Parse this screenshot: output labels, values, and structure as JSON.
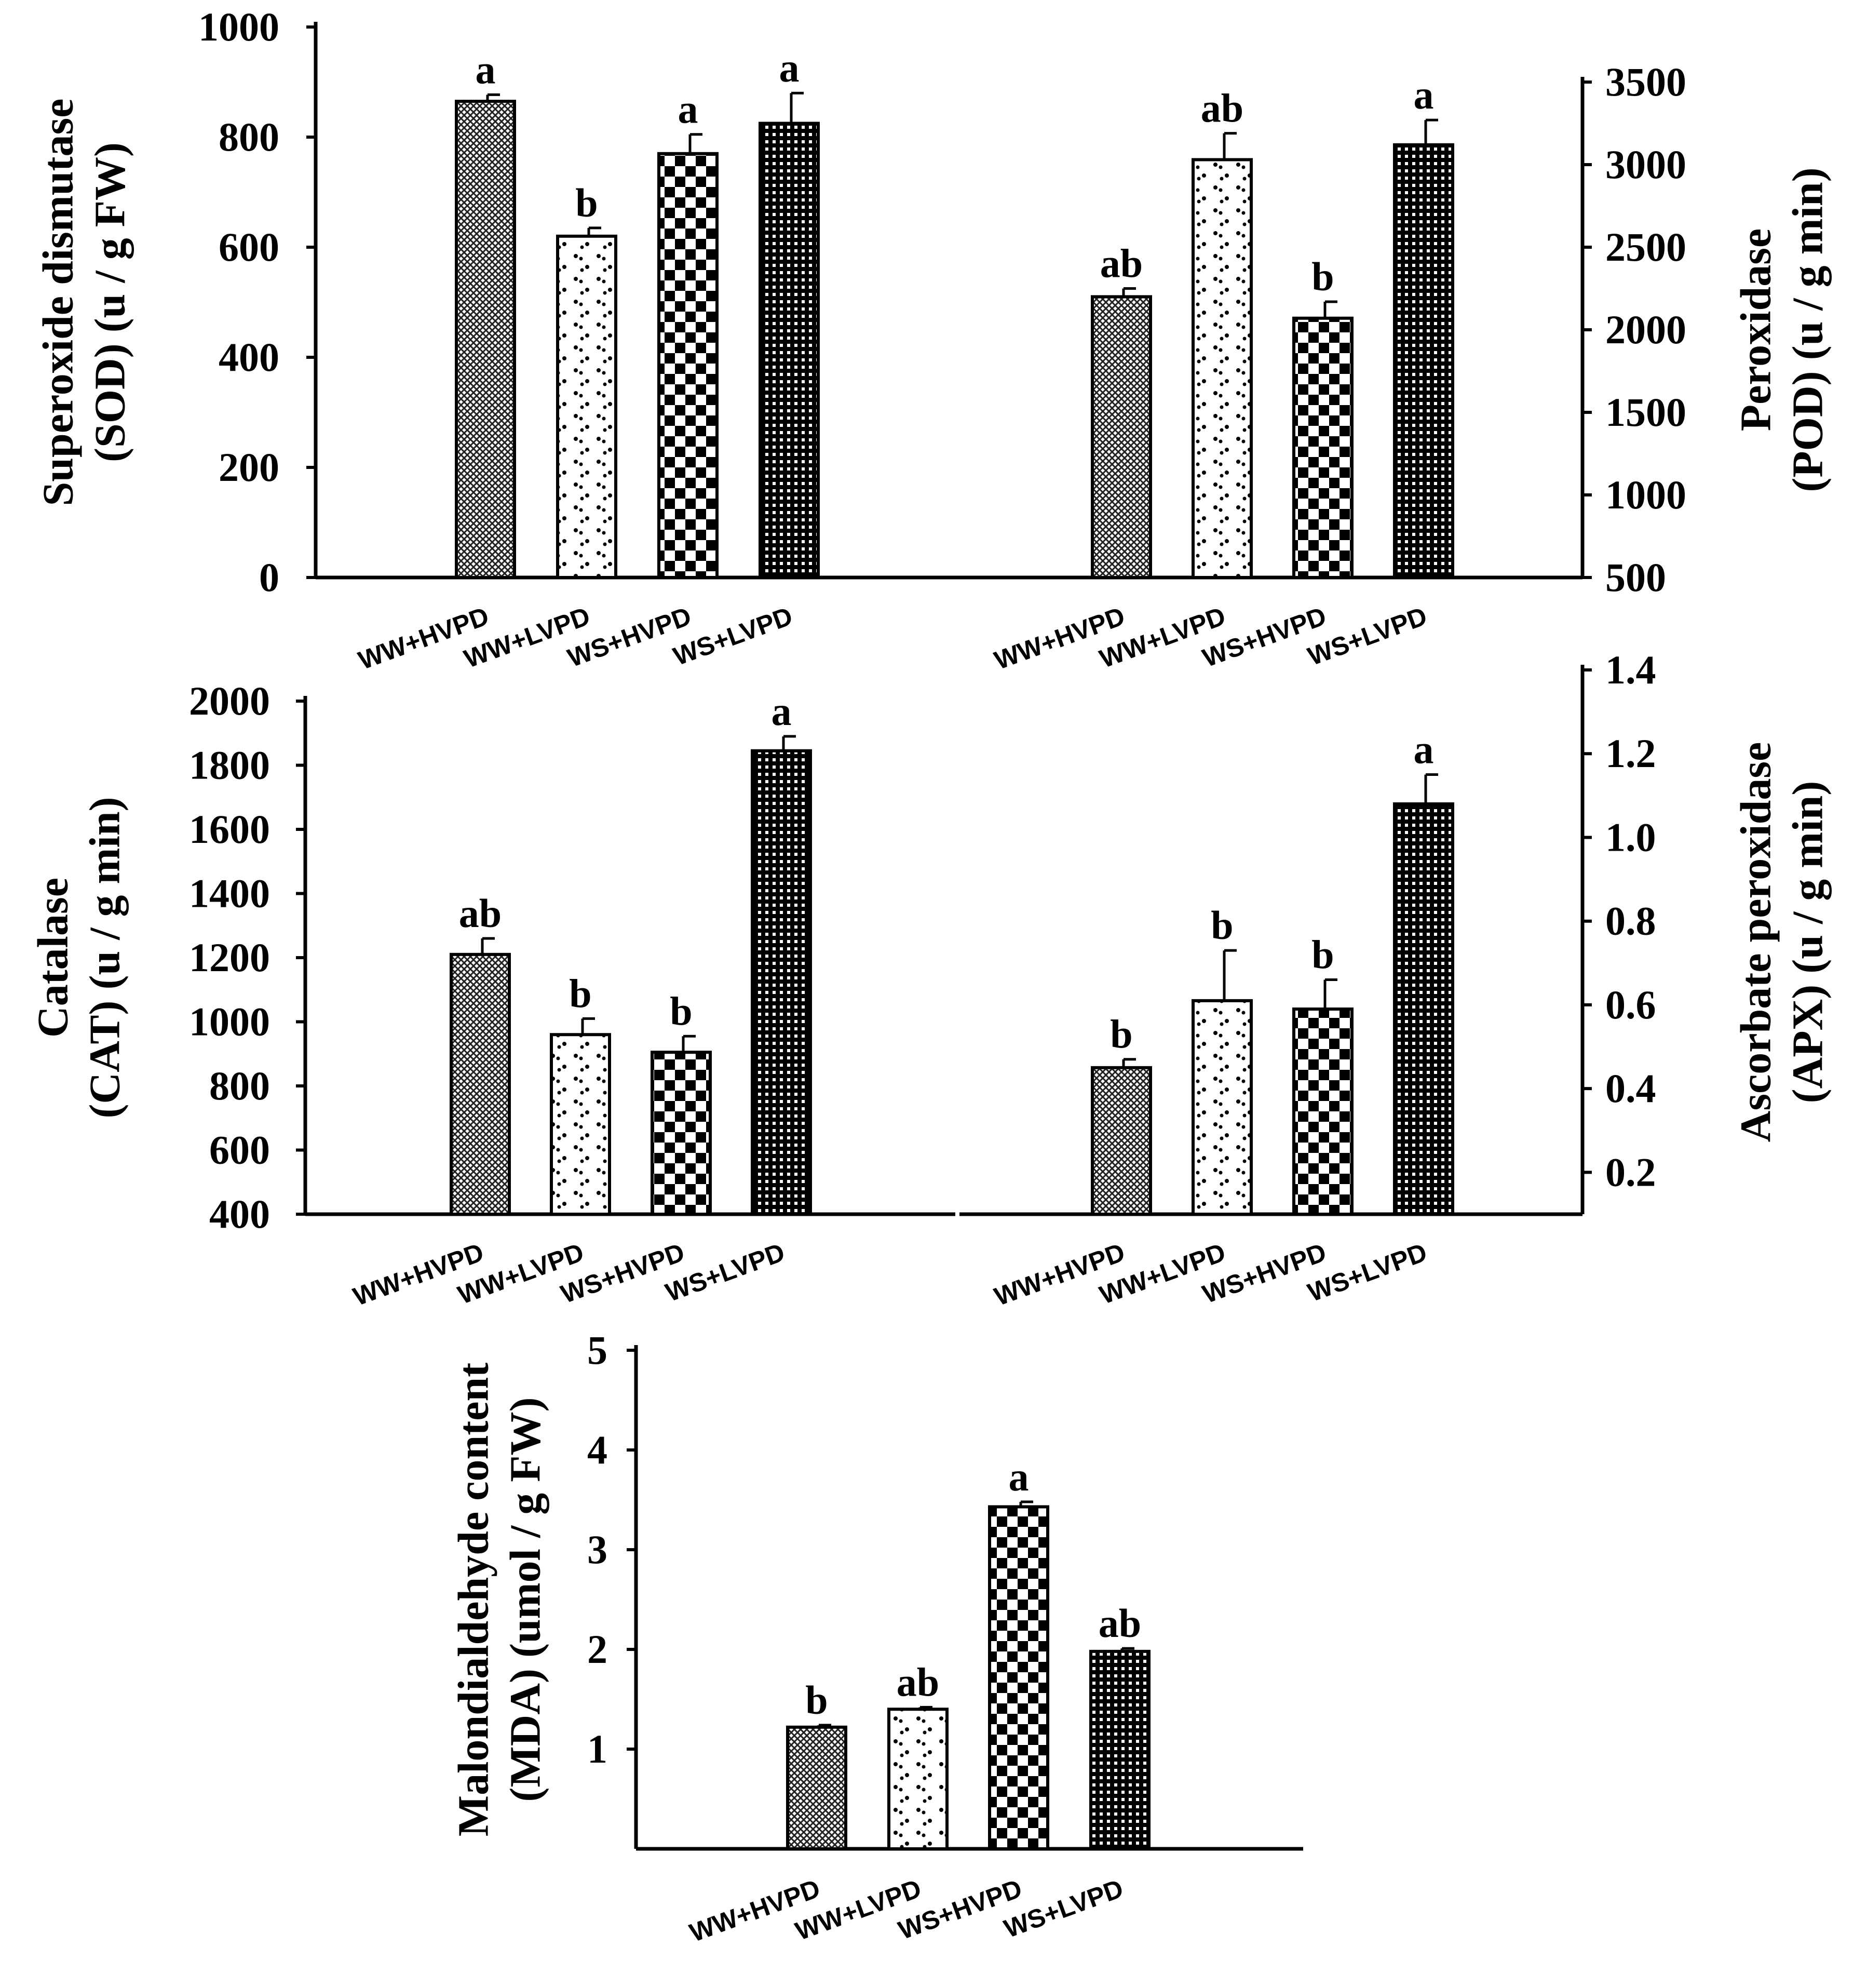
{
  "chart_data": [
    {
      "id": "sod",
      "type": "bar",
      "categories": [
        "WW+HVPD",
        "WW+LVPD",
        "WS+HVPD",
        "WS+LVPD"
      ],
      "values": [
        865,
        620,
        770,
        825
      ],
      "errors": [
        12,
        15,
        35,
        55
      ],
      "significance": [
        "a",
        "b",
        "a",
        "a"
      ],
      "ylabel": [
        "Superoxide dismutase",
        "(SOD) (u / g FW)"
      ],
      "ylim": [
        0,
        1000
      ],
      "yticks": [
        0,
        200,
        400,
        600,
        800,
        1000
      ],
      "ytick_labels": [
        "0",
        "200",
        "400",
        "600",
        "800",
        "1000"
      ],
      "axis_side": "left"
    },
    {
      "id": "pod",
      "type": "bar",
      "categories": [
        "WW+HVPD",
        "WW+LVPD",
        "WS+HVPD",
        "WS+LVPD"
      ],
      "values": [
        2200,
        3030,
        2070,
        3120
      ],
      "errors": [
        50,
        160,
        100,
        150
      ],
      "significance": [
        "ab",
        "ab",
        "b",
        "a"
      ],
      "ylabel": [
        "Peroxidase",
        "(POD) (u / g min)"
      ],
      "ylim": [
        500,
        3500
      ],
      "yticks": [
        500,
        1000,
        1500,
        2000,
        2500,
        3000,
        3500
      ],
      "ytick_labels": [
        "500",
        "1000",
        "1500",
        "2000",
        "2500",
        "3000",
        "3500"
      ],
      "axis_side": "right"
    },
    {
      "id": "cat",
      "type": "bar",
      "categories": [
        "WW+HVPD",
        "WW+LVPD",
        "WS+HVPD",
        "WS+LVPD"
      ],
      "values": [
        1210,
        960,
        905,
        1845
      ],
      "errors": [
        50,
        50,
        50,
        45
      ],
      "significance": [
        "ab",
        "b",
        "b",
        "a"
      ],
      "ylabel": [
        "Catalase",
        "(CAT) (u / g min)"
      ],
      "ylim": [
        400,
        2000
      ],
      "yticks": [
        400,
        600,
        800,
        1000,
        1200,
        1400,
        1600,
        1800,
        2000
      ],
      "ytick_labels": [
        "400",
        "600",
        "800",
        "1000",
        "1200",
        "1400",
        "1600",
        "1800",
        "2000"
      ],
      "axis_side": "left"
    },
    {
      "id": "apx",
      "type": "bar",
      "categories": [
        "WW+HVPD",
        "WW+LVPD",
        "WS+HVPD",
        "WS+LVPD"
      ],
      "values": [
        0.45,
        0.61,
        0.59,
        1.08
      ],
      "errors": [
        0.02,
        0.12,
        0.07,
        0.07
      ],
      "significance": [
        "b",
        "b",
        "b",
        "a"
      ],
      "ylabel": [
        "Ascorbate peroxidase",
        "(APX) (u / g min)"
      ],
      "ylim": [
        0.1,
        1.4
      ],
      "yticks": [
        0.2,
        0.4,
        0.6,
        0.8,
        1.0,
        1.2,
        1.4
      ],
      "ytick_labels": [
        "0.2",
        "0.4",
        "0.6",
        "0.8",
        "1.0",
        "1.2",
        "1.4"
      ],
      "axis_side": "right"
    },
    {
      "id": "mda",
      "type": "bar",
      "categories": [
        "WW+HVPD",
        "WW+LVPD",
        "WS+HVPD",
        "WS+LVPD"
      ],
      "values": [
        1.22,
        1.4,
        3.43,
        1.98
      ],
      "errors": [
        0.02,
        0.02,
        0.05,
        0.03
      ],
      "significance": [
        "b",
        "ab",
        "a",
        "ab"
      ],
      "ylabel": [
        "Malondialdehyde content",
        "(MDA) (umol / g FW)"
      ],
      "ylim": [
        0,
        5
      ],
      "yticks": [
        1,
        2,
        3,
        4,
        5
      ],
      "ytick_labels": [
        "1",
        "2",
        "3",
        "4",
        "5"
      ],
      "axis_side": "left"
    }
  ],
  "colors": {
    "axis": "#000000",
    "bar_stroke": "#000000",
    "bar_background": "#ffffff"
  }
}
